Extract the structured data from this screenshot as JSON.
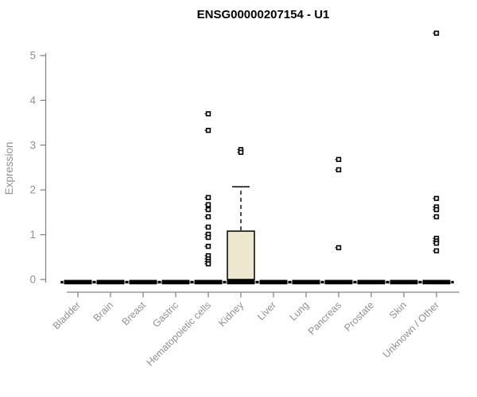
{
  "chart_data": {
    "type": "boxplot",
    "title": "ENSG00000207154 - U1",
    "ylabel": "Expression",
    "xlabel": "",
    "ylim": [
      0,
      5.6
    ],
    "yticks": [
      0,
      1,
      2,
      3,
      4,
      5
    ],
    "grid": false,
    "legend": "none",
    "colors": {
      "box_fill": "#ece7cd",
      "box_stroke": "#000000",
      "median": "#000000",
      "axis": "#878787",
      "tick_label": "#8e9096",
      "title": "#000000",
      "background": "#ffffff"
    },
    "categories": [
      "Bladder",
      "Brain",
      "Breast",
      "Gastric",
      "Hematopoietic cells",
      "Kidney",
      "Liver",
      "Lung",
      "Pancreas",
      "Prostate",
      "Skin",
      "Unknown / Other"
    ],
    "boxes": [
      {
        "category": "Bladder",
        "q1": 0,
        "median": 0,
        "q3": 0,
        "whisker_low": 0,
        "whisker_high": 0,
        "outliers": []
      },
      {
        "category": "Brain",
        "q1": 0,
        "median": 0,
        "q3": 0,
        "whisker_low": 0,
        "whisker_high": 0,
        "outliers": []
      },
      {
        "category": "Breast",
        "q1": 0,
        "median": 0,
        "q3": 0,
        "whisker_low": 0,
        "whisker_high": 0,
        "outliers": []
      },
      {
        "category": "Gastric",
        "q1": 0,
        "median": 0,
        "q3": 0,
        "whisker_low": 0,
        "whisker_high": 0,
        "outliers": []
      },
      {
        "category": "Hematopoietic cells",
        "q1": 0,
        "median": 0,
        "q3": 0,
        "whisker_low": 0,
        "whisker_high": 0,
        "outliers": [
          3.7,
          3.33,
          1.83,
          1.67,
          1.56,
          1.4,
          1.17,
          1.01,
          0.94,
          0.74,
          0.53,
          0.46,
          0.4,
          0.35
        ]
      },
      {
        "category": "Kidney",
        "q1": 0,
        "median": 0,
        "q3": 1.08,
        "whisker_low": 0,
        "whisker_high": 2.07,
        "outliers": [
          2.9,
          2.84
        ]
      },
      {
        "category": "Liver",
        "q1": 0,
        "median": 0,
        "q3": 0,
        "whisker_low": 0,
        "whisker_high": 0,
        "outliers": []
      },
      {
        "category": "Lung",
        "q1": 0,
        "median": 0,
        "q3": 0,
        "whisker_low": 0,
        "whisker_high": 0,
        "outliers": []
      },
      {
        "category": "Pancreas",
        "q1": 0,
        "median": 0,
        "q3": 0,
        "whisker_low": 0,
        "whisker_high": 0,
        "outliers": [
          2.68,
          2.45,
          0.71
        ]
      },
      {
        "category": "Prostate",
        "q1": 0,
        "median": 0,
        "q3": 0,
        "whisker_low": 0,
        "whisker_high": 0,
        "outliers": []
      },
      {
        "category": "Skin",
        "q1": 0,
        "median": 0,
        "q3": 0,
        "whisker_low": 0,
        "whisker_high": 0,
        "outliers": []
      },
      {
        "category": "Unknown / Other",
        "q1": 0,
        "median": 0,
        "q3": 0,
        "whisker_low": 0,
        "whisker_high": 0,
        "outliers": [
          5.5,
          1.81,
          1.62,
          1.56,
          1.4,
          0.92,
          0.86,
          0.81,
          0.64
        ]
      }
    ]
  }
}
